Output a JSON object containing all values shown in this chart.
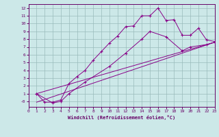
{
  "xlabel": "Windchill (Refroidissement éolien,°C)",
  "bg_color": "#cce8e8",
  "line_color": "#880088",
  "grid_color": "#99bbbb",
  "xlim": [
    0,
    23
  ],
  "ylim": [
    -0.7,
    12.5
  ],
  "xticks": [
    0,
    1,
    2,
    3,
    4,
    5,
    6,
    7,
    8,
    9,
    10,
    11,
    12,
    13,
    14,
    15,
    16,
    17,
    18,
    19,
    20,
    21,
    22,
    23
  ],
  "yticks": [
    0,
    1,
    2,
    3,
    4,
    5,
    6,
    7,
    8,
    9,
    10,
    11,
    12
  ],
  "ytick_labels": [
    "-0",
    "1",
    "2",
    "3",
    "4",
    "5",
    "6",
    "7",
    "8",
    "9",
    "10",
    "11",
    "12"
  ],
  "series1_x": [
    1,
    2,
    3,
    4,
    5,
    6,
    7,
    8,
    9,
    10,
    11,
    12,
    13,
    14,
    15,
    16,
    17,
    18,
    19,
    20,
    21,
    22,
    23
  ],
  "series1_y": [
    1.0,
    -0.1,
    -0.1,
    0.2,
    2.3,
    3.2,
    4.0,
    5.3,
    6.4,
    7.5,
    8.4,
    9.6,
    9.7,
    11.0,
    11.0,
    12.0,
    10.4,
    10.5,
    8.5,
    8.5,
    9.4,
    7.9,
    7.7
  ],
  "series2_x": [
    1,
    3,
    4,
    5,
    7,
    10,
    12,
    14,
    15,
    17,
    19,
    20,
    22,
    23
  ],
  "series2_y": [
    1.0,
    -0.2,
    0.0,
    1.0,
    2.5,
    4.5,
    6.2,
    8.0,
    9.0,
    8.3,
    6.5,
    7.0,
    7.3,
    7.6
  ],
  "series3_x": [
    1,
    23
  ],
  "series3_y": [
    1.0,
    7.6
  ],
  "series4_x": [
    1,
    23
  ],
  "series4_y": [
    -0.1,
    7.6
  ]
}
